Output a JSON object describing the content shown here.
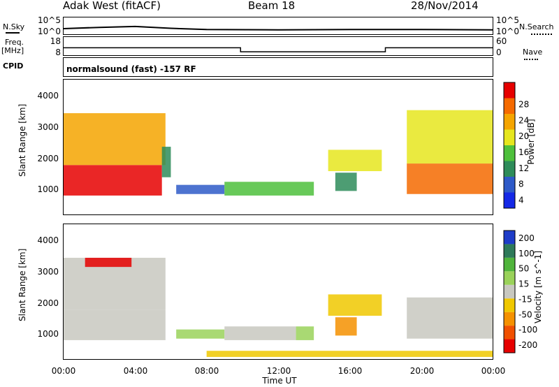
{
  "header": {
    "station": "Adak West (fitACF)",
    "beam": "Beam 18",
    "date": "28/Nov/2014"
  },
  "aux_labels": {
    "nsky": "N.Sky",
    "nsearch": "N.Search",
    "freq": "Freq.",
    "freq_unit": "[MHz]",
    "nave": "Nave",
    "cpid": "CPID",
    "cpid_value": "normalsound (fast) -157 RF",
    "noise_top": "10^5",
    "noise_bottom": "10^0",
    "freq_top": "18",
    "freq_bottom": "8",
    "nave_top": "60",
    "nave_bottom": "0"
  },
  "axes": {
    "ylabel": "Slant Range [km]",
    "xlabel": "Time UT",
    "y_ticks": [
      "1000",
      "2000",
      "3000",
      "4000"
    ],
    "x_ticks": [
      "00:00",
      "04:00",
      "08:00",
      "12:00",
      "16:00",
      "20:00",
      "00:00"
    ]
  },
  "colorbars": {
    "power": {
      "label": "Power [dB]",
      "ticks": [
        "4",
        "8",
        "12",
        "16",
        "20",
        "24",
        "28"
      ],
      "colors": [
        "#1428e6",
        "#2e5ac8",
        "#2e8c5a",
        "#4ec03c",
        "#e6e61e",
        "#f5a500",
        "#f56a00",
        "#e60000"
      ]
    },
    "velocity": {
      "label": "Velocity [m s^-1]",
      "ticks": [
        "200",
        "100",
        "50",
        "15",
        "-15",
        "-50",
        "-100",
        "-200"
      ],
      "colors": [
        "#1e3cc8",
        "#2e7a5a",
        "#50b43c",
        "#9ad25a",
        "#c8c8c0",
        "#f0c800",
        "#f59100",
        "#f05000",
        "#e60000"
      ]
    }
  },
  "chart_data": [
    {
      "type": "line",
      "name": "noise",
      "title": "Adak West (fitACF)",
      "x_range_hours": [
        0,
        24
      ],
      "series": [
        {
          "name": "N.Sky",
          "x": [
            0,
            2,
            4,
            6,
            8,
            12,
            16,
            20,
            24
          ],
          "y": [
            1.6,
            2.0,
            2.3,
            1.7,
            1.3,
            1.2,
            1.3,
            1.3,
            1.2
          ]
        }
      ]
    },
    {
      "type": "line",
      "name": "frequency",
      "x": [
        0,
        9.9,
        9.9,
        18.0,
        18.0,
        24
      ],
      "series": [
        {
          "name": "Freq.",
          "y": [
            12.0,
            12.0,
            9.6,
            9.6,
            12.0,
            12.0
          ]
        }
      ]
    },
    {
      "type": "heatmap",
      "name": "power",
      "xlabel": "Time UT",
      "ylabel": "Slant Range [km]",
      "xlim": [
        0,
        24
      ],
      "ylim": [
        180,
        4600
      ],
      "clim": [
        0,
        30
      ],
      "regions": [
        {
          "x": [
            0.0,
            5.5
          ],
          "y": [
            800,
            1800
          ],
          "value": 28
        },
        {
          "x": [
            0.0,
            5.7
          ],
          "y": [
            1800,
            3500
          ],
          "value": 20
        },
        {
          "x": [
            5.5,
            6.0
          ],
          "y": [
            1400,
            2400
          ],
          "value": 8
        },
        {
          "x": [
            6.3,
            9.0
          ],
          "y": [
            850,
            1150
          ],
          "value": 6
        },
        {
          "x": [
            9.0,
            14.0
          ],
          "y": [
            800,
            1250
          ],
          "value": 12
        },
        {
          "x": [
            14.8,
            17.8
          ],
          "y": [
            1600,
            2300
          ],
          "value": 16
        },
        {
          "x": [
            15.2,
            16.4
          ],
          "y": [
            950,
            1550
          ],
          "value": 8
        },
        {
          "x": [
            19.2,
            24.0
          ],
          "y": [
            850,
            1850
          ],
          "value": 26
        },
        {
          "x": [
            19.2,
            24.0
          ],
          "y": [
            1850,
            3600
          ],
          "value": 18
        }
      ]
    },
    {
      "type": "heatmap",
      "name": "velocity",
      "xlabel": "Time UT",
      "ylabel": "Slant Range [km]",
      "xlim": [
        0,
        24
      ],
      "ylim": [
        180,
        4600
      ],
      "clim": [
        -200,
        200
      ],
      "regions": [
        {
          "x": [
            0.0,
            5.7
          ],
          "y": [
            800,
            1800
          ],
          "value": 0
        },
        {
          "x": [
            0.0,
            5.7
          ],
          "y": [
            1800,
            3500
          ],
          "value": -10
        },
        {
          "x": [
            1.2,
            3.8
          ],
          "y": [
            3200,
            3500
          ],
          "value": -200
        },
        {
          "x": [
            6.3,
            9.0
          ],
          "y": [
            850,
            1150
          ],
          "value": 40
        },
        {
          "x": [
            9.0,
            13.0
          ],
          "y": [
            800,
            1250
          ],
          "value": 0
        },
        {
          "x": [
            13.0,
            14.0
          ],
          "y": [
            800,
            1250
          ],
          "value": 60
        },
        {
          "x": [
            14.8,
            17.8
          ],
          "y": [
            1600,
            2300
          ],
          "value": -60
        },
        {
          "x": [
            15.2,
            16.4
          ],
          "y": [
            950,
            1550
          ],
          "value": -80
        },
        {
          "x": [
            19.2,
            24.0
          ],
          "y": [
            850,
            2200
          ],
          "value": 0
        },
        {
          "x": [
            8.0,
            24.0
          ],
          "y": [
            250,
            450
          ],
          "value": -40
        }
      ]
    }
  ]
}
